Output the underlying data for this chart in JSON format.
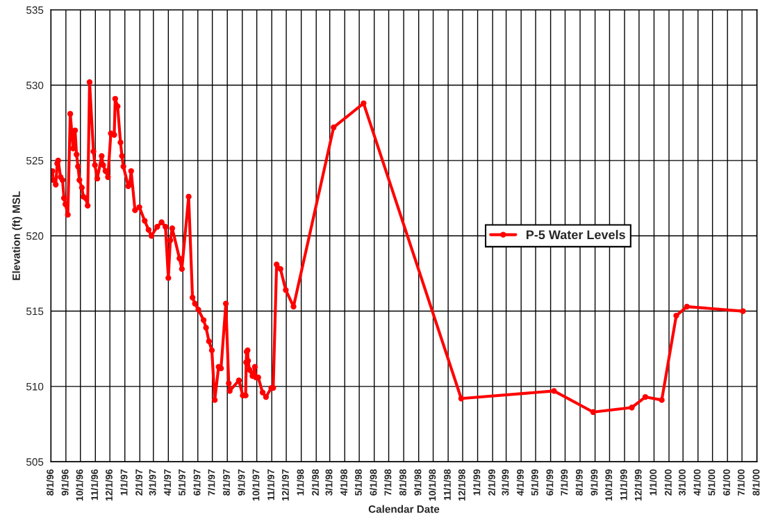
{
  "chart_data": {
    "type": "line",
    "xlabel": "Calendar Date",
    "ylabel": "Elevation (ft) MSL",
    "x": [
      "1996-08-04",
      "1996-08-06",
      "1996-08-11",
      "1996-08-14",
      "1996-08-16",
      "1996-08-21",
      "1996-08-25",
      "1996-08-28",
      "1996-08-31",
      "1996-09-05",
      "1996-09-10",
      "1996-09-16",
      "1996-09-20",
      "1996-09-23",
      "1996-09-26",
      "1996-09-29",
      "1996-10-04",
      "1996-10-07",
      "1996-10-12",
      "1996-10-16",
      "1996-10-20",
      "1996-10-28",
      "1996-10-31",
      "1996-11-05",
      "1996-11-14",
      "1996-11-17",
      "1996-11-22",
      "1996-11-27",
      "1996-12-03",
      "1996-12-10",
      "1996-12-12",
      "1996-12-17",
      "1996-12-23",
      "1996-12-26",
      "1996-12-29",
      "1997-01-08",
      "1997-01-11",
      "1997-01-14",
      "1997-01-22",
      "1997-01-31",
      "1997-02-11",
      "1997-02-19",
      "1997-02-25",
      "1997-03-09",
      "1997-03-18",
      "1997-03-26",
      "1997-04-01",
      "1997-04-05",
      "1997-04-09",
      "1997-04-24",
      "1997-04-29",
      "1997-05-13",
      "1997-05-21",
      "1997-05-26",
      "1997-06-02",
      "1997-06-13",
      "1997-06-18",
      "1997-06-24",
      "1997-06-30",
      "1997-07-06",
      "1997-07-14",
      "1997-07-19",
      "1997-07-29",
      "1997-08-04",
      "1997-08-06",
      "1997-08-25",
      "1997-09-02",
      "1997-09-08",
      "1997-09-09",
      "1997-09-10",
      "1997-09-12",
      "1997-09-13",
      "1997-09-16",
      "1997-09-22",
      "1997-09-27",
      "1997-09-29",
      "1997-10-04",
      "1997-10-13",
      "1997-10-20",
      "1997-10-31",
      "1997-11-04",
      "1997-11-11",
      "1997-11-19",
      "1997-11-30",
      "1997-12-16",
      "1998-03-09",
      "1998-05-10",
      "1998-11-28",
      "1999-06-08",
      "1999-08-28",
      "1999-11-16",
      "1999-12-14",
      "2000-01-17",
      "2000-02-16",
      "2000-03-09",
      "2000-07-03"
    ],
    "series": [
      {
        "name": "P-5 Water Levels",
        "color": "#ff0000",
        "values": [
          524.3,
          523.7,
          523.4,
          524.8,
          525.0,
          523.9,
          523.7,
          522.5,
          522.1,
          521.4,
          528.1,
          525.8,
          527.0,
          525.4,
          524.6,
          523.7,
          523.2,
          522.6,
          522.5,
          522.0,
          530.2,
          525.6,
          524.7,
          523.8,
          525.3,
          524.7,
          524.3,
          523.9,
          526.8,
          526.7,
          529.1,
          528.6,
          526.2,
          525.3,
          524.6,
          523.3,
          523.4,
          524.3,
          521.7,
          521.9,
          521.0,
          520.4,
          520.0,
          520.6,
          520.9,
          520.6,
          517.2,
          519.7,
          520.5,
          518.5,
          517.8,
          522.6,
          515.9,
          515.5,
          515.1,
          514.4,
          513.9,
          513.0,
          512.4,
          509.1,
          511.3,
          511.2,
          515.5,
          510.2,
          509.7,
          510.4,
          509.4,
          509.4,
          511.6,
          512.3,
          512.4,
          511.7,
          511.1,
          510.7,
          511.3,
          510.6,
          510.6,
          509.6,
          509.3,
          509.9,
          509.9,
          518.1,
          517.8,
          516.4,
          515.3,
          527.2,
          528.8,
          509.2,
          509.7,
          508.3,
          508.6,
          509.3,
          509.1,
          514.7,
          515.3,
          515.0
        ]
      }
    ],
    "xlim": [
      "1996-08-01",
      "2000-08-01"
    ],
    "xticks": [
      {
        "value": "1996-08-01",
        "label": "8/1/96"
      },
      {
        "value": "1996-09-01",
        "label": "9/1/96"
      },
      {
        "value": "1996-10-01",
        "label": "10/1/96"
      },
      {
        "value": "1996-11-01",
        "label": "11/1/96"
      },
      {
        "value": "1996-12-01",
        "label": "12/1/96"
      },
      {
        "value": "1997-01-01",
        "label": "1/1/97"
      },
      {
        "value": "1997-02-01",
        "label": "2/1/97"
      },
      {
        "value": "1997-03-01",
        "label": "3/1/97"
      },
      {
        "value": "1997-04-01",
        "label": "4/1/97"
      },
      {
        "value": "1997-05-01",
        "label": "5/1/97"
      },
      {
        "value": "1997-06-01",
        "label": "6/1/97"
      },
      {
        "value": "1997-07-01",
        "label": "7/1/97"
      },
      {
        "value": "1997-08-01",
        "label": "8/1/97"
      },
      {
        "value": "1997-09-01",
        "label": "9/1/97"
      },
      {
        "value": "1997-10-01",
        "label": "10/1/97"
      },
      {
        "value": "1997-11-01",
        "label": "11/1/97"
      },
      {
        "value": "1997-12-01",
        "label": "12/1/97"
      },
      {
        "value": "1998-01-01",
        "label": "1/1/98"
      },
      {
        "value": "1998-02-01",
        "label": "2/1/98"
      },
      {
        "value": "1998-03-01",
        "label": "3/1/98"
      },
      {
        "value": "1998-04-01",
        "label": "4/1/98"
      },
      {
        "value": "1998-05-01",
        "label": "5/1/98"
      },
      {
        "value": "1998-06-01",
        "label": "6/1/98"
      },
      {
        "value": "1998-07-01",
        "label": "7/1/98"
      },
      {
        "value": "1998-08-01",
        "label": "8/1/98"
      },
      {
        "value": "1998-09-01",
        "label": "9/1/98"
      },
      {
        "value": "1998-10-01",
        "label": "10/1/98"
      },
      {
        "value": "1998-11-01",
        "label": "11/1/98"
      },
      {
        "value": "1998-12-01",
        "label": "12/1/98"
      },
      {
        "value": "1999-01-01",
        "label": "1/1/99"
      },
      {
        "value": "1999-02-01",
        "label": "2/1/99"
      },
      {
        "value": "1999-03-01",
        "label": "3/1/99"
      },
      {
        "value": "1999-04-01",
        "label": "4/1/99"
      },
      {
        "value": "1999-05-01",
        "label": "5/1/99"
      },
      {
        "value": "1999-06-01",
        "label": "6/1/99"
      },
      {
        "value": "1999-07-01",
        "label": "7/1/99"
      },
      {
        "value": "1999-08-01",
        "label": "8/1/99"
      },
      {
        "value": "1999-09-01",
        "label": "9/1/99"
      },
      {
        "value": "1999-10-01",
        "label": "10/1/99"
      },
      {
        "value": "1999-11-01",
        "label": "11/1/99"
      },
      {
        "value": "1999-12-01",
        "label": "12/1/99"
      },
      {
        "value": "2000-01-01",
        "label": "1/1/00"
      },
      {
        "value": "2000-02-01",
        "label": "2/1/00"
      },
      {
        "value": "2000-03-01",
        "label": "3/1/00"
      },
      {
        "value": "2000-04-01",
        "label": "4/1/00"
      },
      {
        "value": "2000-05-01",
        "label": "5/1/00"
      },
      {
        "value": "2000-06-01",
        "label": "6/1/00"
      },
      {
        "value": "2000-07-01",
        "label": "7/1/00"
      },
      {
        "value": "2000-08-01",
        "label": "8/1/00"
      }
    ],
    "ylim": [
      505,
      535
    ],
    "yticks": [
      505,
      510,
      515,
      520,
      525,
      530,
      535
    ],
    "grid": true,
    "legend": "right",
    "marker": "circle",
    "line_style": "solid"
  }
}
